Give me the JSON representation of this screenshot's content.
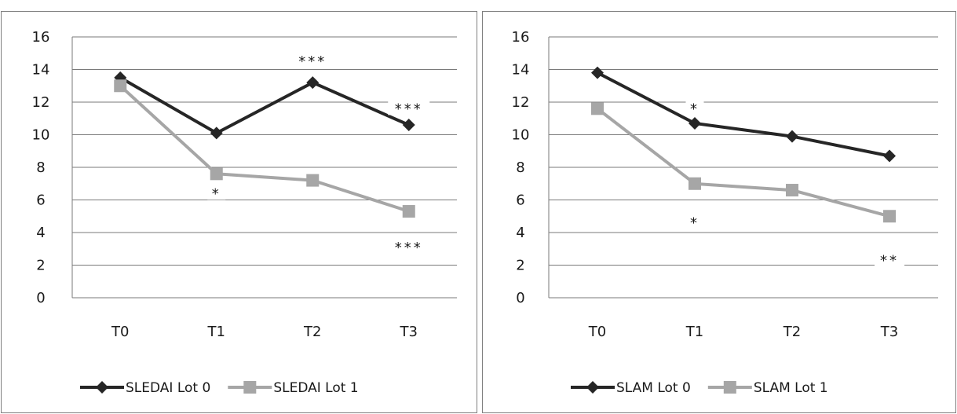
{
  "chart_data": [
    {
      "type": "line",
      "categories": [
        "T0",
        "T1",
        "T2",
        "T3"
      ],
      "ylim": [
        0,
        16
      ],
      "yticks": [
        0,
        2,
        4,
        6,
        8,
        10,
        12,
        14,
        16
      ],
      "grid": true,
      "legend_position": "bottom",
      "series": [
        {
          "name": "SLEDAI Lot 0",
          "values": [
            13.5,
            10.1,
            13.2,
            10.6
          ],
          "color": "#262626",
          "marker": "diamond"
        },
        {
          "name": "SLEDAI Lot 1",
          "values": [
            13.0,
            7.6,
            7.2,
            5.3
          ],
          "color": "#a6a6a6",
          "marker": "square"
        }
      ],
      "annotations": [
        {
          "text": "***",
          "category": "T2",
          "y": 14.4
        },
        {
          "text": "***",
          "category": "T3",
          "y": 11.5
        },
        {
          "text": "*",
          "category": "T1",
          "y": 6.3
        },
        {
          "text": "***",
          "category": "T3",
          "y": 3.0
        }
      ]
    },
    {
      "type": "line",
      "categories": [
        "T0",
        "T1",
        "T2",
        "T3"
      ],
      "ylim": [
        0,
        16
      ],
      "yticks": [
        0,
        2,
        4,
        6,
        8,
        10,
        12,
        14,
        16
      ],
      "grid": true,
      "legend_position": "bottom",
      "series": [
        {
          "name": "SLAM Lot 0",
          "values": [
            13.8,
            10.7,
            9.9,
            8.7
          ],
          "color": "#262626",
          "marker": "diamond"
        },
        {
          "name": "SLAM Lot 1",
          "values": [
            11.6,
            7.0,
            6.6,
            5.0
          ],
          "color": "#a6a6a6",
          "marker": "square"
        }
      ],
      "annotations": [
        {
          "text": "*",
          "category": "T1",
          "y": 11.5
        },
        {
          "text": "*",
          "category": "T1",
          "y": 4.5
        },
        {
          "text": "**",
          "category": "T3",
          "y": 2.2
        }
      ]
    }
  ]
}
